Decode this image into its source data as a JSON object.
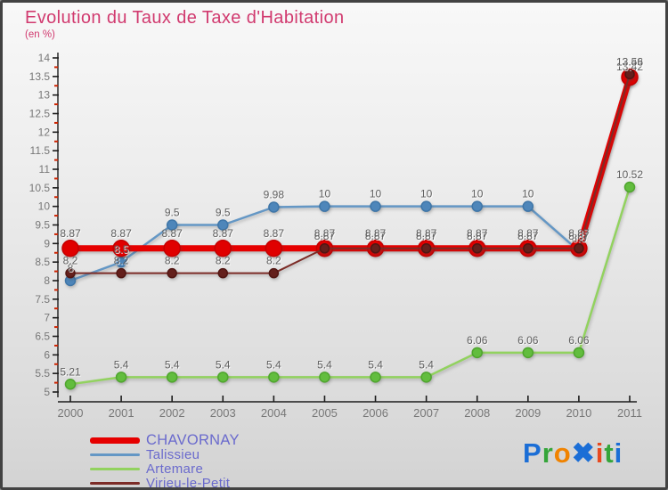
{
  "header": {
    "title": "Evolution du Taux de Taxe d'Habitation",
    "subtitle": "(en %)",
    "title_color": "#d13a6f"
  },
  "chart_data": {
    "type": "line",
    "title": "Evolution du Taux de Taxe d'Habitation",
    "subtitle": "(en %)",
    "x": [
      "2000",
      "2001",
      "2002",
      "2003",
      "2004",
      "2005",
      "2006",
      "2007",
      "2008",
      "2009",
      "2010",
      "2011"
    ],
    "ylim": [
      5,
      14
    ],
    "y_major_step": 0.5,
    "y_minor_step": 0.25,
    "grid": false,
    "legend_position": "bottom-left",
    "series": [
      {
        "name": "CHAVORNAY",
        "color": "#e60000",
        "dot_color": "#e00000",
        "dot_stroke": "#c40000",
        "line_width": 7,
        "dot_radius": 9,
        "values": [
          8.87,
          8.87,
          8.87,
          8.87,
          8.87,
          8.87,
          8.87,
          8.87,
          8.87,
          8.87,
          8.87,
          13.48
        ]
      },
      {
        "name": "Talissieu",
        "color": "#6497c5",
        "dot_color": "#4e86ba",
        "dot_stroke": "#3f76a8",
        "line_width": 2.5,
        "dot_radius": 5.5,
        "values": [
          8,
          8.5,
          9.5,
          9.5,
          9.98,
          10,
          10,
          10,
          10,
          10,
          8.8,
          13.42
        ]
      },
      {
        "name": "Artemare",
        "color": "#92d25f",
        "dot_color": "#62bd3e",
        "dot_stroke": "#4fa52e",
        "line_width": 2.5,
        "dot_radius": 5.5,
        "values": [
          5.21,
          5.4,
          5.4,
          5.4,
          5.4,
          5.4,
          5.4,
          5.4,
          6.06,
          6.06,
          6.06,
          10.52
        ]
      },
      {
        "name": "Virieu-le-Petit",
        "color": "#7c2c27",
        "dot_color": "#64201c",
        "dot_stroke": "#511612",
        "line_width": 2,
        "dot_radius": 5,
        "values": [
          8.2,
          8.2,
          8.2,
          8.2,
          8.2,
          8.87,
          8.87,
          8.87,
          8.87,
          8.87,
          8.87,
          13.56
        ]
      }
    ],
    "value_label_color": "#5f5f5f",
    "axis_color": "#1c1c1c",
    "minor_tick_color": "#cc2200",
    "tick_label_color": "#787878"
  },
  "legend": {
    "text_color": "#6a6acd",
    "items": [
      {
        "label": "CHAVORNAY",
        "color": "#e60000",
        "thickness": 7
      },
      {
        "label": "Talissieu",
        "color": "#6497c5",
        "thickness": 3
      },
      {
        "label": "Artemare",
        "color": "#92d25f",
        "thickness": 3
      },
      {
        "label": "Virieu-le-Petit",
        "color": "#7c2c27",
        "thickness": 3
      }
    ]
  },
  "logo": {
    "text": "Proxiti",
    "letters": [
      {
        "char": "P",
        "color": "#1b6ed6"
      },
      {
        "char": "r",
        "color": "#35a53a"
      },
      {
        "char": "o",
        "color": "#f08300"
      },
      {
        "char": "✖",
        "color": "#1b6ed6"
      },
      {
        "char": "i",
        "color": "#e8491f"
      },
      {
        "char": "t",
        "color": "#35a53a"
      },
      {
        "char": "i",
        "color": "#1b6ed6"
      }
    ]
  }
}
